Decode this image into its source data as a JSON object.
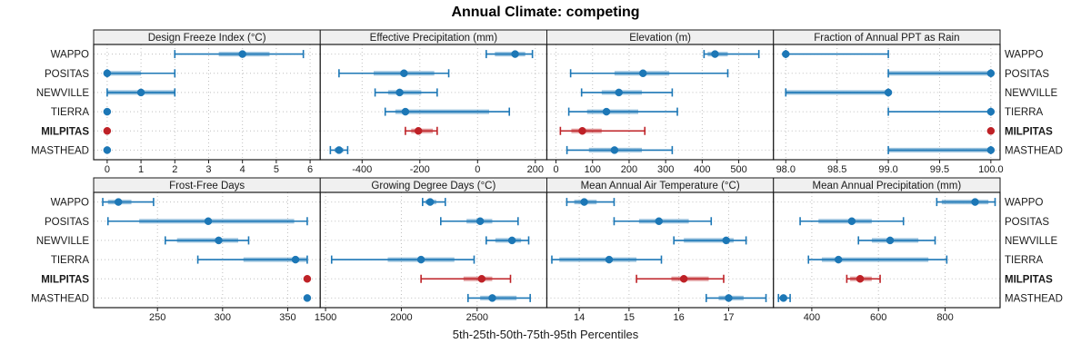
{
  "title": "Annual Climate: competing",
  "caption": "5th-25th-50th-75th-95th Percentiles",
  "colors": {
    "series_blue": "#1c77b6",
    "highlight_red": "#be2126",
    "strip_bg": "#f0f0f0",
    "panel_border": "#1a1a1a",
    "gridline": "#bfbfbf",
    "text": "#1a1a1a"
  },
  "chart_data": {
    "type": "dotplot-percentile",
    "percentile_levels": [
      5,
      25,
      50,
      75,
      95
    ],
    "sites": [
      "WAPPO",
      "POSITAS",
      "NEWVILLE",
      "TIERRA",
      "MILPITAS",
      "MASTHEAD"
    ],
    "highlight_site": "MILPITAS",
    "legend": "median dot with 25th-75th thick band and 5th-95th whisker line",
    "panels": [
      {
        "title": "Design Freeze Index (°C)",
        "row": 0,
        "col": 0,
        "xlim": [
          -0.4,
          6.3
        ],
        "ticks": [
          0,
          1,
          2,
          3,
          4,
          5,
          6
        ],
        "tick_labels": [
          "0",
          "1",
          "2",
          "3",
          "4",
          "5",
          "6"
        ],
        "series": {
          "WAPPO": [
            2,
            3.3,
            4,
            4.8,
            5.8
          ],
          "POSITAS": [
            0,
            0,
            0,
            1,
            2
          ],
          "NEWVILLE": [
            0,
            0,
            1,
            2,
            2
          ],
          "TIERRA": [
            0,
            0,
            0,
            0,
            0
          ],
          "MILPITAS": [
            0,
            0,
            0,
            0,
            0
          ],
          "MASTHEAD": [
            0,
            0,
            0,
            0,
            0
          ]
        }
      },
      {
        "title": "Effective Precipitation (mm)",
        "row": 0,
        "col": 1,
        "xlim": [
          -545,
          240
        ],
        "ticks": [
          -400,
          -200,
          0,
          200
        ],
        "tick_labels": [
          "-400",
          "-200",
          "0",
          "200"
        ],
        "series": {
          "WAPPO": [
            30,
            60,
            130,
            165,
            190
          ],
          "POSITAS": [
            -480,
            -360,
            -255,
            -150,
            -100
          ],
          "NEWVILLE": [
            -355,
            -310,
            -270,
            -195,
            -140
          ],
          "TIERRA": [
            -320,
            -285,
            -250,
            40,
            110
          ],
          "MILPITAS": [
            -250,
            -230,
            -205,
            -155,
            -140
          ],
          "MASTHEAD": [
            -510,
            -495,
            -480,
            -465,
            -450
          ]
        }
      },
      {
        "title": "Elevation (m)",
        "row": 0,
        "col": 2,
        "xlim": [
          -25,
          595
        ],
        "ticks": [
          0,
          100,
          200,
          300,
          400,
          500
        ],
        "tick_labels": [
          "0",
          "100",
          "200",
          "300",
          "400",
          "500"
        ],
        "series": {
          "WAPPO": [
            405,
            415,
            435,
            470,
            555
          ],
          "POSITAS": [
            40,
            160,
            238,
            310,
            470
          ],
          "NEWVILLE": [
            70,
            125,
            172,
            235,
            318
          ],
          "TIERRA": [
            35,
            85,
            138,
            225,
            332
          ],
          "MILPITAS": [
            12,
            42,
            72,
            125,
            243
          ],
          "MASTHEAD": [
            30,
            90,
            160,
            235,
            318
          ]
        }
      },
      {
        "title": "Fraction of Annual PPT as Rain",
        "row": 0,
        "col": 3,
        "xlim": [
          97.88,
          100.09
        ],
        "ticks": [
          98.0,
          98.5,
          99.0,
          99.5,
          100.0
        ],
        "tick_labels": [
          "98.0",
          "98.5",
          "99.0",
          "99.5",
          "100.0"
        ],
        "series": {
          "WAPPO": [
            98,
            98,
            98,
            98,
            99
          ],
          "POSITAS": [
            99,
            99,
            100,
            100,
            100
          ],
          "NEWVILLE": [
            98,
            98,
            99,
            99,
            99
          ],
          "TIERRA": [
            99,
            100,
            100,
            100,
            100
          ],
          "MILPITAS": [
            100,
            100,
            100,
            100,
            100
          ],
          "MASTHEAD": [
            99,
            99,
            100,
            100,
            100
          ]
        }
      },
      {
        "title": "Frost-Free Days",
        "row": 1,
        "col": 0,
        "xlim": [
          201,
          375
        ],
        "ticks": [
          250,
          300,
          350
        ],
        "tick_labels": [
          "250",
          "300",
          "350"
        ],
        "series": {
          "WAPPO": [
            208,
            212,
            220,
            230,
            247
          ],
          "POSITAS": [
            212,
            236,
            289,
            355,
            365
          ],
          "NEWVILLE": [
            256,
            265,
            297,
            312,
            320
          ],
          "TIERRA": [
            281,
            316,
            356,
            365,
            365
          ],
          "MILPITAS": [
            365,
            365,
            365,
            365,
            365
          ],
          "MASTHEAD": [
            365,
            365,
            365,
            365,
            365
          ]
        }
      },
      {
        "title": "Growing Degree Days (°C)",
        "row": 1,
        "col": 1,
        "xlim": [
          1465,
          2960
        ],
        "ticks": [
          1500,
          2000,
          2500
        ],
        "tick_labels": [
          "1500",
          "2000",
          "2500"
        ],
        "series": {
          "WAPPO": [
            2140,
            2160,
            2190,
            2230,
            2290
          ],
          "POSITAS": [
            2260,
            2430,
            2520,
            2600,
            2770
          ],
          "NEWVILLE": [
            2560,
            2620,
            2730,
            2790,
            2840
          ],
          "TIERRA": [
            1540,
            1910,
            2130,
            2350,
            2480
          ],
          "MILPITAS": [
            2130,
            2410,
            2530,
            2600,
            2720
          ],
          "MASTHEAD": [
            2440,
            2520,
            2600,
            2760,
            2850
          ]
        }
      },
      {
        "title": "Mean Annual Air Temperature (°C)",
        "row": 1,
        "col": 2,
        "xlim": [
          13.35,
          17.9
        ],
        "ticks": [
          14,
          15,
          16,
          17
        ],
        "tick_labels": [
          "14",
          "15",
          "16",
          "17"
        ],
        "series": {
          "WAPPO": [
            13.75,
            13.9,
            14.1,
            14.35,
            14.7
          ],
          "POSITAS": [
            14.7,
            15.2,
            15.6,
            16.2,
            16.65
          ],
          "NEWVILLE": [
            15.9,
            16.1,
            16.95,
            17.1,
            17.35
          ],
          "TIERRA": [
            13.45,
            13.6,
            14.6,
            15.15,
            15.65
          ],
          "MILPITAS": [
            15.15,
            15.85,
            16.1,
            16.6,
            16.9
          ],
          "MASTHEAD": [
            16.55,
            16.8,
            17.0,
            17.3,
            17.75
          ]
        }
      },
      {
        "title": "Mean Annual Precipitation (mm)",
        "row": 1,
        "col": 3,
        "xlim": [
          285,
          965
        ],
        "ticks": [
          400,
          600,
          800
        ],
        "tick_labels": [
          "400",
          "600",
          "800"
        ],
        "series": {
          "WAPPO": [
            775,
            790,
            890,
            930,
            950
          ],
          "POSITAS": [
            365,
            420,
            520,
            580,
            675
          ],
          "NEWVILLE": [
            540,
            580,
            635,
            720,
            770
          ],
          "TIERRA": [
            390,
            430,
            480,
            750,
            805
          ],
          "MILPITAS": [
            505,
            515,
            545,
            580,
            605
          ],
          "MASTHEAD": [
            300,
            305,
            315,
            325,
            335
          ]
        }
      }
    ]
  }
}
